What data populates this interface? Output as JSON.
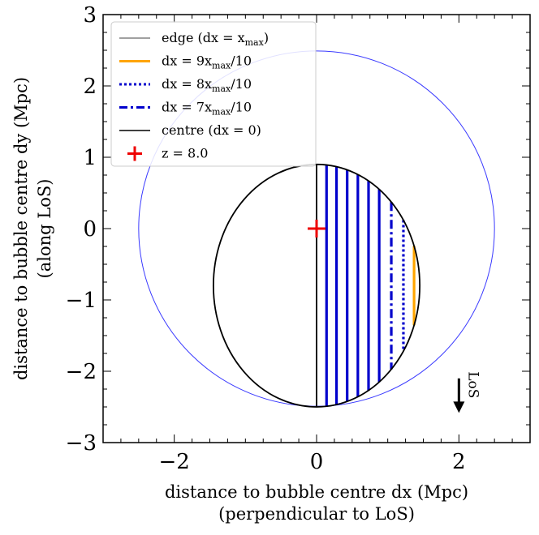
{
  "chart_data": {
    "type": "line",
    "xlabel_line1": "distance to bubble centre dx (Mpc)",
    "xlabel_line2": "(perpendicular to LoS)",
    "ylabel_line1": "distance to bubble centre dy (Mpc)",
    "ylabel_line2": "(along LoS)",
    "xlim": [
      -3,
      3
    ],
    "ylim": [
      -3,
      3
    ],
    "grid": false,
    "legend_placement": "top-left",
    "xticks": [
      -2,
      0,
      2
    ],
    "xtick_labels": [
      "−2",
      "0",
      "2"
    ],
    "yticks": [
      -3,
      -2,
      -1,
      0,
      1,
      2,
      3
    ],
    "ytick_labels": [
      "−3",
      "−2",
      "−1",
      "0",
      "1",
      "2",
      "3"
    ],
    "outer_circle": {
      "cx": 0,
      "cy": 0,
      "r": 2.5,
      "color": "#3a3aff"
    },
    "bubble_ellipse": {
      "cx": 0,
      "cy": -0.8,
      "rx": 1.45,
      "ry": 1.7,
      "color": "#000000"
    },
    "centre_line": {
      "x": 0,
      "y0": -2.5,
      "y1": 0.9,
      "color": "#000000"
    },
    "blue_line_x": [
      0.14,
      0.28,
      0.43,
      0.58,
      0.73,
      0.88
    ],
    "blue_line_color": "#0000cc",
    "dash_dot_line_x": 1.05,
    "dotted_line_x": 1.22,
    "orange_line_x": 1.37,
    "orange_color": "#ffa500",
    "redshift_marker": {
      "x": 0,
      "y": 0,
      "color": "#ee0000"
    },
    "los_arrow": {
      "x": 2.0,
      "y_from": -2.1,
      "y_to": -2.55,
      "label": "LoS"
    },
    "legend": [
      {
        "label": "edge (dx = x",
        "sub": "max",
        "tail": ")",
        "style": "edge"
      },
      {
        "label": "dx = 9x",
        "sub": "max",
        "tail": "/10",
        "style": "orange"
      },
      {
        "label": "dx = 8x",
        "sub": "max",
        "tail": "/10",
        "style": "dotted"
      },
      {
        "label": "dx = 7x",
        "sub": "max",
        "tail": "/10",
        "style": "dashdot"
      },
      {
        "label": "centre (dx = 0)",
        "sub": "",
        "tail": "",
        "style": "centre"
      },
      {
        "label": "z = 8.0",
        "sub": "",
        "tail": "",
        "style": "marker"
      }
    ]
  }
}
